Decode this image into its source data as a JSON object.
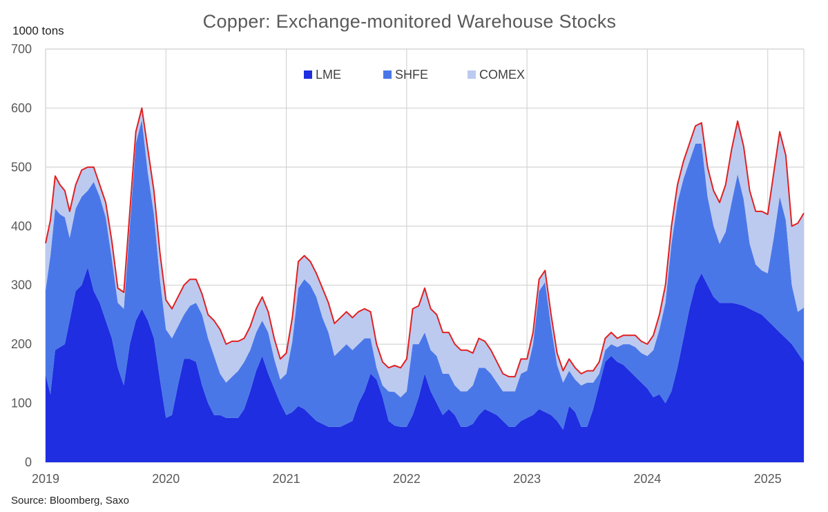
{
  "chart_data": {
    "type": "area",
    "stacked": true,
    "title": "Copper: Exchange-monitored Warehouse Stocks",
    "unit_label": "1000 tons",
    "source": "Source: Bloomberg, Saxo",
    "ylim": [
      0,
      700
    ],
    "yticks": [
      "0",
      "100",
      "200",
      "300",
      "400",
      "500",
      "600",
      "700"
    ],
    "xlim": [
      2019.0,
      2025.3
    ],
    "xticks": [
      "2019",
      "2020",
      "2021",
      "2022",
      "2023",
      "2024",
      "2025"
    ],
    "grid": true,
    "legend_position": "top-center",
    "colors": {
      "LME": "#1f2ee0",
      "SHFE": "#4a77e8",
      "COMEX": "#bccaf0",
      "Total": "#e02020"
    },
    "x": [
      2019.0,
      2019.04,
      2019.08,
      2019.12,
      2019.16,
      2019.2,
      2019.25,
      2019.3,
      2019.35,
      2019.4,
      2019.45,
      2019.5,
      2019.55,
      2019.6,
      2019.65,
      2019.7,
      2019.75,
      2019.8,
      2019.85,
      2019.9,
      2019.95,
      2020.0,
      2020.05,
      2020.1,
      2020.15,
      2020.2,
      2020.25,
      2020.3,
      2020.35,
      2020.4,
      2020.45,
      2020.5,
      2020.55,
      2020.6,
      2020.65,
      2020.7,
      2020.75,
      2020.8,
      2020.85,
      2020.9,
      2020.95,
      2021.0,
      2021.05,
      2021.1,
      2021.15,
      2021.2,
      2021.25,
      2021.3,
      2021.35,
      2021.4,
      2021.45,
      2021.5,
      2021.55,
      2021.6,
      2021.65,
      2021.7,
      2021.75,
      2021.8,
      2021.85,
      2021.9,
      2021.95,
      2022.0,
      2022.05,
      2022.1,
      2022.15,
      2022.2,
      2022.25,
      2022.3,
      2022.35,
      2022.4,
      2022.45,
      2022.5,
      2022.55,
      2022.6,
      2022.65,
      2022.7,
      2022.75,
      2022.8,
      2022.85,
      2022.9,
      2022.95,
      2023.0,
      2023.05,
      2023.1,
      2023.15,
      2023.2,
      2023.25,
      2023.3,
      2023.35,
      2023.4,
      2023.45,
      2023.5,
      2023.55,
      2023.6,
      2023.65,
      2023.7,
      2023.75,
      2023.8,
      2023.85,
      2023.9,
      2023.95,
      2024.0,
      2024.05,
      2024.1,
      2024.15,
      2024.2,
      2024.25,
      2024.3,
      2024.35,
      2024.4,
      2024.45,
      2024.5,
      2024.55,
      2024.6,
      2024.65,
      2024.7,
      2024.75,
      2024.8,
      2024.85,
      2024.9,
      2024.95,
      2025.0,
      2025.05,
      2025.1,
      2025.15,
      2025.2,
      2025.25,
      2025.3
    ],
    "series": [
      {
        "name": "LME",
        "values": [
          148,
          115,
          190,
          195,
          200,
          240,
          290,
          300,
          330,
          290,
          270,
          240,
          210,
          160,
          130,
          200,
          240,
          260,
          240,
          210,
          140,
          75,
          80,
          130,
          175,
          175,
          170,
          130,
          100,
          80,
          80,
          75,
          75,
          75,
          90,
          120,
          155,
          180,
          150,
          125,
          100,
          80,
          85,
          95,
          90,
          80,
          70,
          65,
          60,
          60,
          60,
          65,
          70,
          100,
          120,
          150,
          140,
          110,
          70,
          62,
          60,
          60,
          80,
          110,
          150,
          120,
          100,
          80,
          90,
          80,
          60,
          60,
          65,
          80,
          90,
          85,
          80,
          70,
          60,
          60,
          70,
          75,
          80,
          90,
          85,
          80,
          70,
          55,
          95,
          85,
          60,
          60,
          90,
          130,
          170,
          180,
          170,
          165,
          155,
          145,
          135,
          125,
          110,
          115,
          100,
          120,
          160,
          210,
          260,
          300,
          320,
          300,
          280,
          270,
          270,
          270,
          268,
          265,
          260,
          255,
          250,
          240,
          230,
          220,
          210,
          200,
          185,
          170
        ]
      },
      {
        "name": "SHFE",
        "values": [
          143,
          235,
          240,
          225,
          215,
          140,
          140,
          150,
          130,
          185,
          180,
          175,
          135,
          110,
          130,
          200,
          300,
          320,
          250,
          210,
          170,
          150,
          130,
          100,
          75,
          90,
          100,
          120,
          110,
          100,
          70,
          60,
          70,
          80,
          80,
          70,
          65,
          60,
          70,
          50,
          40,
          70,
          120,
          200,
          220,
          220,
          210,
          180,
          160,
          120,
          130,
          135,
          120,
          100,
          90,
          60,
          20,
          20,
          50,
          57,
          50,
          60,
          120,
          90,
          70,
          70,
          80,
          70,
          60,
          50,
          60,
          60,
          65,
          80,
          70,
          65,
          55,
          50,
          60,
          60,
          80,
          80,
          120,
          200,
          220,
          150,
          95,
          80,
          60,
          55,
          70,
          75,
          45,
          20,
          20,
          20,
          25,
          35,
          45,
          50,
          50,
          55,
          80,
          110,
          170,
          250,
          280,
          270,
          250,
          240,
          220,
          150,
          120,
          100,
          120,
          170,
          220,
          180,
          110,
          80,
          75,
          80,
          150,
          230,
          200,
          100,
          70,
          92
        ]
      },
      {
        "name": "COMEX",
        "values": [
          80,
          60,
          55,
          50,
          45,
          45,
          40,
          45,
          40,
          25,
          20,
          25,
          30,
          25,
          28,
          25,
          20,
          20,
          40,
          40,
          45,
          50,
          50,
          50,
          50,
          45,
          40,
          35,
          40,
          60,
          75,
          65,
          60,
          50,
          40,
          40,
          40,
          40,
          35,
          35,
          35,
          35,
          40,
          45,
          40,
          40,
          40,
          50,
          50,
          55,
          55,
          55,
          55,
          55,
          50,
          45,
          40,
          40,
          40,
          45,
          50,
          55,
          60,
          65,
          75,
          70,
          70,
          70,
          70,
          70,
          70,
          70,
          55,
          50,
          45,
          40,
          35,
          30,
          25,
          25,
          25,
          20,
          20,
          20,
          20,
          20,
          20,
          20,
          20,
          20,
          20,
          20,
          20,
          20,
          20,
          20,
          15,
          15,
          15,
          20,
          20,
          20,
          25,
          25,
          30,
          30,
          30,
          30,
          30,
          30,
          35,
          50,
          60,
          70,
          80,
          90,
          90,
          90,
          90,
          90,
          100,
          100,
          110,
          110,
          110,
          100,
          150,
          160
        ]
      }
    ],
    "total_line": {
      "name": "Total",
      "values": [
        371,
        410,
        485,
        470,
        460,
        425,
        470,
        495,
        500,
        500,
        470,
        440,
        375,
        295,
        288,
        425,
        560,
        600,
        530,
        460,
        355,
        275,
        260,
        280,
        300,
        310,
        310,
        285,
        250,
        240,
        225,
        200,
        205,
        205,
        210,
        230,
        260,
        280,
        255,
        210,
        175,
        185,
        245,
        340,
        350,
        340,
        320,
        295,
        270,
        235,
        245,
        255,
        245,
        255,
        260,
        255,
        200,
        170,
        160,
        164,
        160,
        175,
        260,
        265,
        295,
        260,
        250,
        220,
        220,
        200,
        190,
        190,
        185,
        210,
        205,
        190,
        170,
        150,
        145,
        145,
        175,
        175,
        220,
        310,
        325,
        250,
        185,
        155,
        175,
        160,
        150,
        155,
        155,
        170,
        210,
        220,
        210,
        215,
        215,
        215,
        205,
        200,
        215,
        250,
        300,
        400,
        470,
        510,
        540,
        570,
        575,
        500,
        460,
        440,
        470,
        530,
        578,
        535,
        460,
        425,
        425,
        420,
        490,
        560,
        520,
        400,
        405,
        422
      ]
    }
  },
  "legend": {
    "items": [
      "LME",
      "SHFE",
      "COMEX"
    ]
  }
}
